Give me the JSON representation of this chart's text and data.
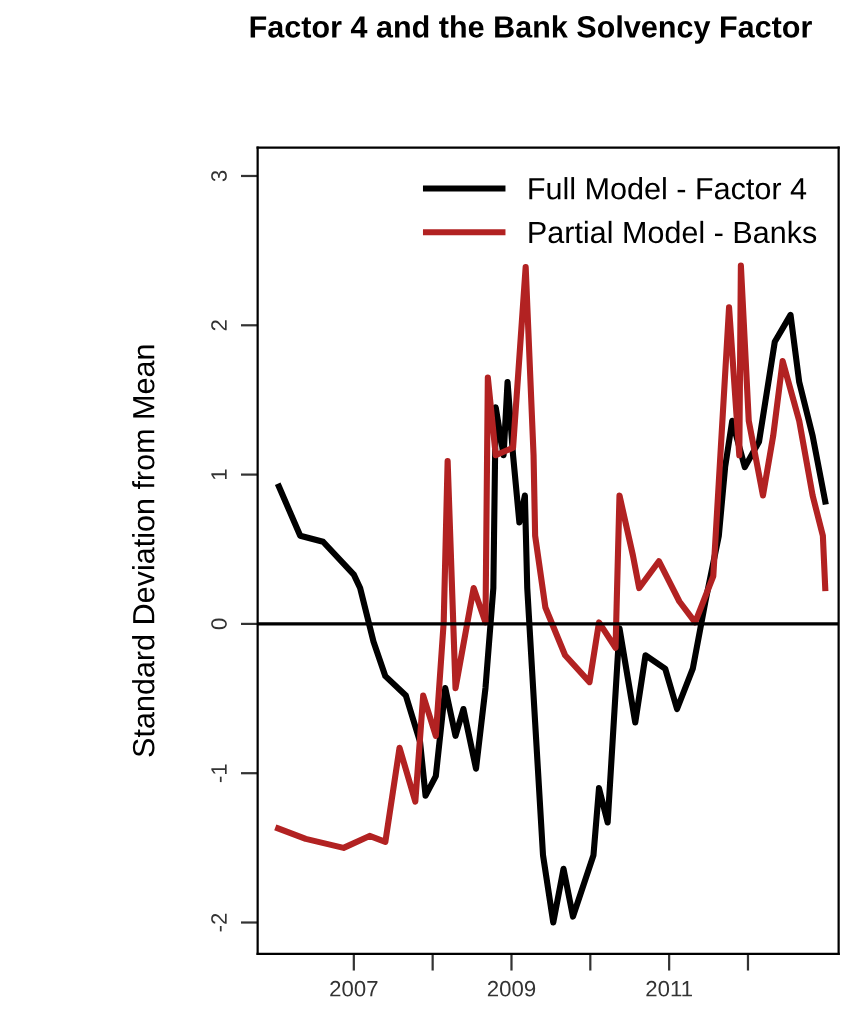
{
  "chart_data": {
    "type": "line",
    "title": "Factor 4 and the Bank Solvency Factor",
    "ylabel": "Standard Deviation from Mean",
    "xlim": [
      2005.78,
      2013.15
    ],
    "ylim": [
      -2.21,
      3.19
    ],
    "xticks": [
      2007,
      {
        "value": 2008,
        "label": null
      },
      2009,
      {
        "value": 2010,
        "label": null
      },
      2011,
      {
        "value": 2012,
        "label": null
      }
    ],
    "yticks": [
      -2,
      -1,
      0,
      1,
      2,
      3
    ],
    "grid": false,
    "legend": "top right",
    "line_style": "solid",
    "marker": "none",
    "ref_lines": [
      {
        "axis": "y",
        "value": 0,
        "color": "#000000"
      }
    ],
    "series": [
      {
        "name": "Full Model - Factor 4",
        "color": "#000000",
        "x": [
          2006.05,
          2006.32,
          2006.61,
          2007.0,
          2007.08,
          2007.25,
          2007.4,
          2007.66,
          2007.84,
          2007.91,
          2008.04,
          2008.16,
          2008.29,
          2008.39,
          2008.55,
          2008.67,
          2008.77,
          2008.8,
          2008.9,
          2008.95,
          2009.02,
          2009.1,
          2009.17,
          2009.2,
          2009.3,
          2009.4,
          2009.53,
          2009.66,
          2009.78,
          2010.04,
          2010.11,
          2010.22,
          2010.37,
          2010.57,
          2010.7,
          2010.95,
          2011.1,
          2011.3,
          2011.46,
          2011.63,
          2011.71,
          2011.8,
          2011.96,
          2012.14,
          2012.34,
          2012.54,
          2012.65,
          2012.82,
          2012.98
        ],
        "values": [
          0.92,
          0.59,
          0.55,
          0.33,
          0.24,
          -0.12,
          -0.35,
          -0.48,
          -0.79,
          -1.15,
          -1.02,
          -0.43,
          -0.75,
          -0.57,
          -0.97,
          -0.43,
          0.24,
          1.45,
          1.13,
          1.62,
          1.13,
          0.68,
          0.86,
          0.24,
          -0.66,
          -1.55,
          -2.0,
          -1.64,
          -1.96,
          -1.55,
          -1.1,
          -1.33,
          -0.03,
          -0.66,
          -0.21,
          -0.3,
          -0.57,
          -0.3,
          0.15,
          0.59,
          1.05,
          1.36,
          1.05,
          1.22,
          1.89,
          2.07,
          1.62,
          1.26,
          0.82
        ]
      },
      {
        "name": "Partial Model - Banks",
        "color": "#b22222",
        "x": [
          2006.04,
          2006.39,
          2006.87,
          2007.2,
          2007.4,
          2007.58,
          2007.78,
          2007.88,
          2008.04,
          2008.14,
          2008.19,
          2008.29,
          2008.52,
          2008.67,
          2008.7,
          2008.8,
          2009.02,
          2009.18,
          2009.28,
          2009.3,
          2009.43,
          2009.68,
          2009.99,
          2010.11,
          2010.32,
          2010.37,
          2010.54,
          2010.62,
          2010.87,
          2011.13,
          2011.33,
          2011.56,
          2011.68,
          2011.76,
          2011.89,
          2011.91,
          2012.01,
          2012.19,
          2012.32,
          2012.44,
          2012.65,
          2012.82,
          2012.95,
          2012.98
        ],
        "values": [
          -1.37,
          -1.44,
          -1.5,
          -1.42,
          -1.46,
          -0.83,
          -1.19,
          -0.48,
          -0.75,
          0.01,
          1.09,
          -0.43,
          0.24,
          0.01,
          1.65,
          1.13,
          1.18,
          2.39,
          1.13,
          0.59,
          0.11,
          -0.21,
          -0.39,
          0.01,
          -0.16,
          0.86,
          0.46,
          0.24,
          0.42,
          0.15,
          0.01,
          0.32,
          1.4,
          2.12,
          1.13,
          2.4,
          1.36,
          0.86,
          1.26,
          1.76,
          1.36,
          0.86,
          0.59,
          0.24
        ]
      }
    ]
  }
}
